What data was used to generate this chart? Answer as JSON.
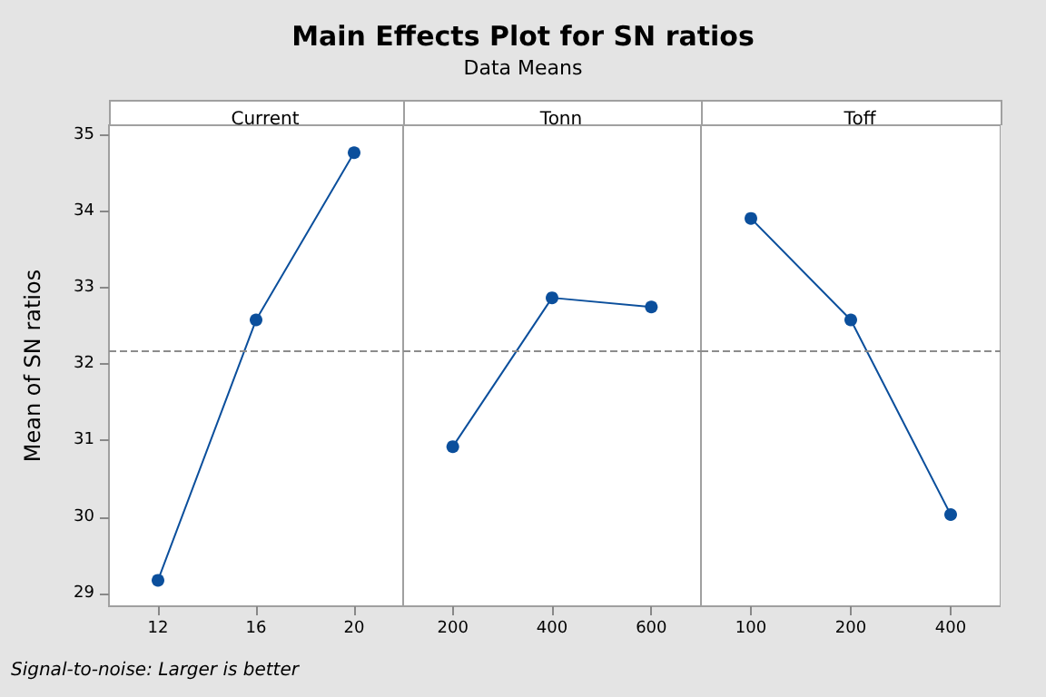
{
  "chart_data": [
    {
      "type": "line",
      "title": "Current",
      "ylabel": "Mean of SN ratios",
      "annotations": [
        "Main Effects Plot for SN ratios",
        "Data Means",
        "Signal-to-noise: Larger is better"
      ],
      "categories": [
        "12",
        "16",
        "20"
      ],
      "values": [
        29.17,
        32.58,
        34.77
      ],
      "color": "#0b4f9c",
      "marker": "circle",
      "ylim": [
        28.83,
        35.13
      ],
      "yticks": [
        29,
        30,
        31,
        32,
        33,
        34,
        35
      ],
      "ref_lines": [
        {
          "axis": "y",
          "value": 32.17,
          "color": "#8c8c8c",
          "line_style": "dashed"
        }
      ]
    },
    {
      "type": "line",
      "title": "Tonn",
      "categories": [
        "200",
        "400",
        "600"
      ],
      "values": [
        30.92,
        32.87,
        32.75
      ],
      "color": "#0b4f9c",
      "marker": "circle",
      "ylim": [
        28.83,
        35.13
      ],
      "yticks": [
        29,
        30,
        31,
        32,
        33,
        34,
        35
      ],
      "tick_labels": "x",
      "ref_lines": [
        {
          "axis": "y",
          "value": 32.17,
          "color": "#8c8c8c",
          "line_style": "dashed"
        }
      ]
    },
    {
      "type": "line",
      "title": "Toff",
      "categories": [
        "100",
        "200",
        "400"
      ],
      "values": [
        33.91,
        32.58,
        30.03
      ],
      "color": "#0b4f9c",
      "marker": "circle",
      "ylim": [
        28.83,
        35.13
      ],
      "yticks": [
        29,
        30,
        31,
        32,
        33,
        34,
        35
      ],
      "tick_labels": "x",
      "ref_lines": [
        {
          "axis": "y",
          "value": 32.17,
          "color": "#8c8c8c",
          "line_style": "dashed"
        }
      ]
    }
  ]
}
